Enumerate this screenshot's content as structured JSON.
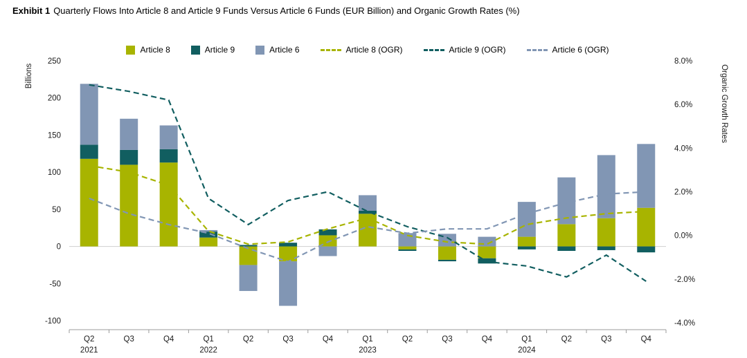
{
  "header": {
    "exhibit_label": "Exhibit 1",
    "title": "Quarterly Flows Into Article 8 and Article 9 Funds Versus Article 6 Funds (EUR Billion) and Organic Growth Rates (%)"
  },
  "chart_data": {
    "type": "bar",
    "subtype": "stacked-bars-with-dashed-lines-dual-axis",
    "left_axis": {
      "label": "Billions",
      "ticks": [
        250,
        200,
        150,
        100,
        50,
        0,
        -50,
        -100
      ],
      "range": [
        -100,
        250
      ]
    },
    "right_axis": {
      "label": "Organic Growth Rates",
      "ticks": [
        {
          "label": "8.0%",
          "value": 8
        },
        {
          "label": "6.0%",
          "value": 6
        },
        {
          "label": "4.0%",
          "value": 4
        },
        {
          "label": "2.0%",
          "value": 2
        },
        {
          "label": "0.0%",
          "value": 0
        },
        {
          "label": "-2.0%",
          "value": -2
        },
        {
          "label": "-4.0%",
          "value": -4
        }
      ],
      "range": [
        -4,
        8
      ]
    },
    "categories": [
      "Q2",
      "Q3",
      "Q4",
      "Q1",
      "Q2",
      "Q3",
      "Q4",
      "Q1",
      "Q2",
      "Q3",
      "Q4",
      "Q1",
      "Q2",
      "Q3",
      "Q4"
    ],
    "year_labels": {
      "0": "2021",
      "3": "2022",
      "7": "2023",
      "11": "2024"
    },
    "grid": "zero-line-only",
    "legend_position": "top-center",
    "bar_series": [
      {
        "name": "Article 8",
        "color": "#a8b400",
        "values": [
          118,
          110,
          113,
          12,
          -25,
          -20,
          15,
          44,
          -4,
          -18,
          -16,
          13,
          30,
          38,
          52
        ]
      },
      {
        "name": "Article 9",
        "color": "#115e60",
        "values": [
          19,
          20,
          18,
          8,
          2,
          5,
          8,
          4,
          -2,
          -2,
          -7,
          -4,
          -6,
          -5,
          -8
        ]
      },
      {
        "name": "Article 6",
        "color": "#8196b4",
        "values": [
          82,
          42,
          32,
          2,
          -35,
          -60,
          -13,
          21,
          18,
          17,
          13,
          47,
          63,
          85,
          86
        ]
      }
    ],
    "line_series": [
      {
        "name": "Article 8 (OGR)",
        "color": "#a8b400",
        "values": [
          3.2,
          2.9,
          2.3,
          0.2,
          -0.4,
          -0.3,
          0.3,
          0.8,
          0.0,
          -0.3,
          -0.4,
          0.5,
          0.8,
          1.0,
          1.1
        ]
      },
      {
        "name": "Article 9 (OGR)",
        "color": "#115e60",
        "values": [
          6.9,
          6.6,
          6.2,
          1.7,
          0.5,
          1.6,
          2.0,
          1.1,
          0.4,
          -0.1,
          -1.2,
          -1.4,
          -1.9,
          -0.9,
          -2.1
        ]
      },
      {
        "name": "Article 6 (OGR)",
        "color": "#8196b4",
        "values": [
          1.7,
          1.0,
          0.5,
          0.1,
          -0.6,
          -1.2,
          -0.3,
          0.4,
          0.1,
          0.3,
          0.3,
          1.0,
          1.5,
          1.9,
          2.0
        ]
      }
    ]
  }
}
